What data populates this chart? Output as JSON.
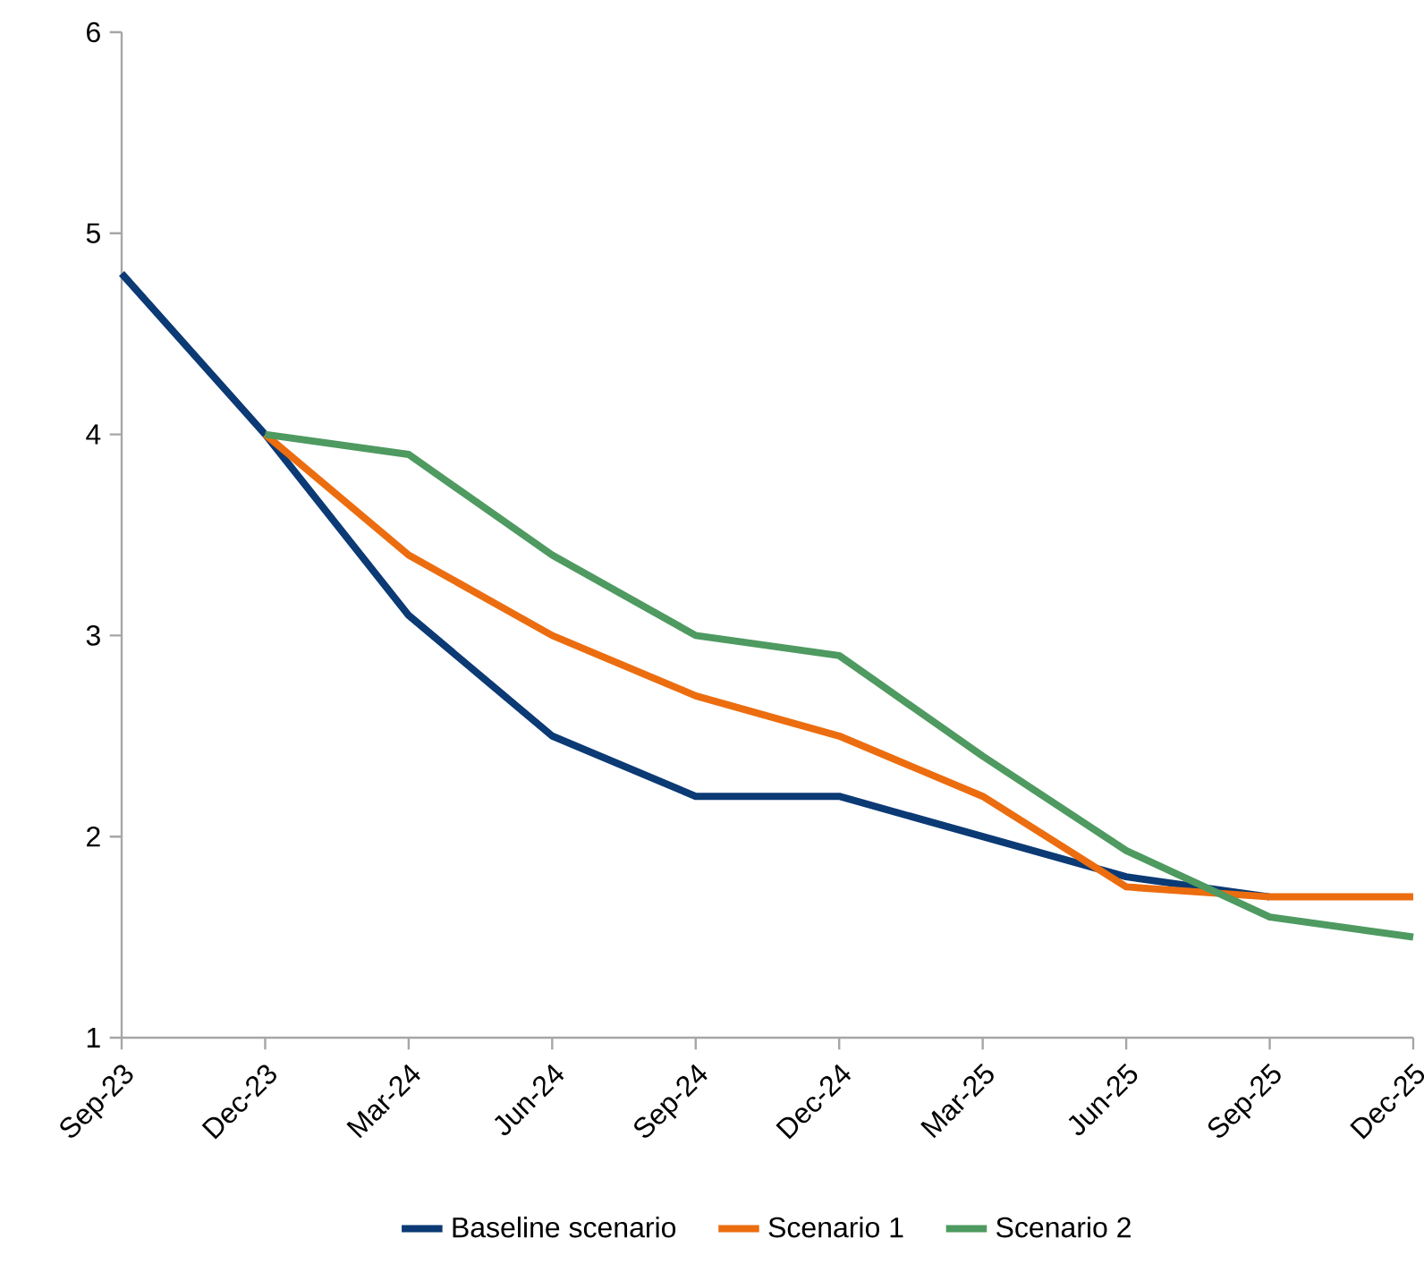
{
  "chart_data": {
    "type": "line",
    "categories": [
      "Sep-23",
      "Dec-23",
      "Mar-24",
      "Jun-24",
      "Sep-24",
      "Dec-24",
      "Mar-25",
      "Jun-25",
      "Sep-25",
      "Dec-25"
    ],
    "series": [
      {
        "name": "Baseline scenario",
        "color": "#0b3a74",
        "values": [
          4.8,
          4.0,
          3.1,
          2.5,
          2.2,
          2.2,
          2.0,
          1.8,
          1.7,
          null
        ]
      },
      {
        "name": "Scenario 1",
        "color": "#ec6d0f",
        "values": [
          null,
          4.0,
          3.4,
          3.0,
          2.7,
          2.5,
          2.2,
          1.75,
          1.7,
          1.7
        ]
      },
      {
        "name": "Scenario 2",
        "color": "#4e9a60",
        "values": [
          null,
          4.0,
          3.9,
          3.4,
          3.0,
          2.9,
          2.4,
          1.93,
          1.6,
          1.5
        ]
      }
    ],
    "ylim": [
      1,
      6
    ],
    "yticks": [
      1,
      2,
      3,
      4,
      5,
      6
    ],
    "legend": "bottom"
  }
}
